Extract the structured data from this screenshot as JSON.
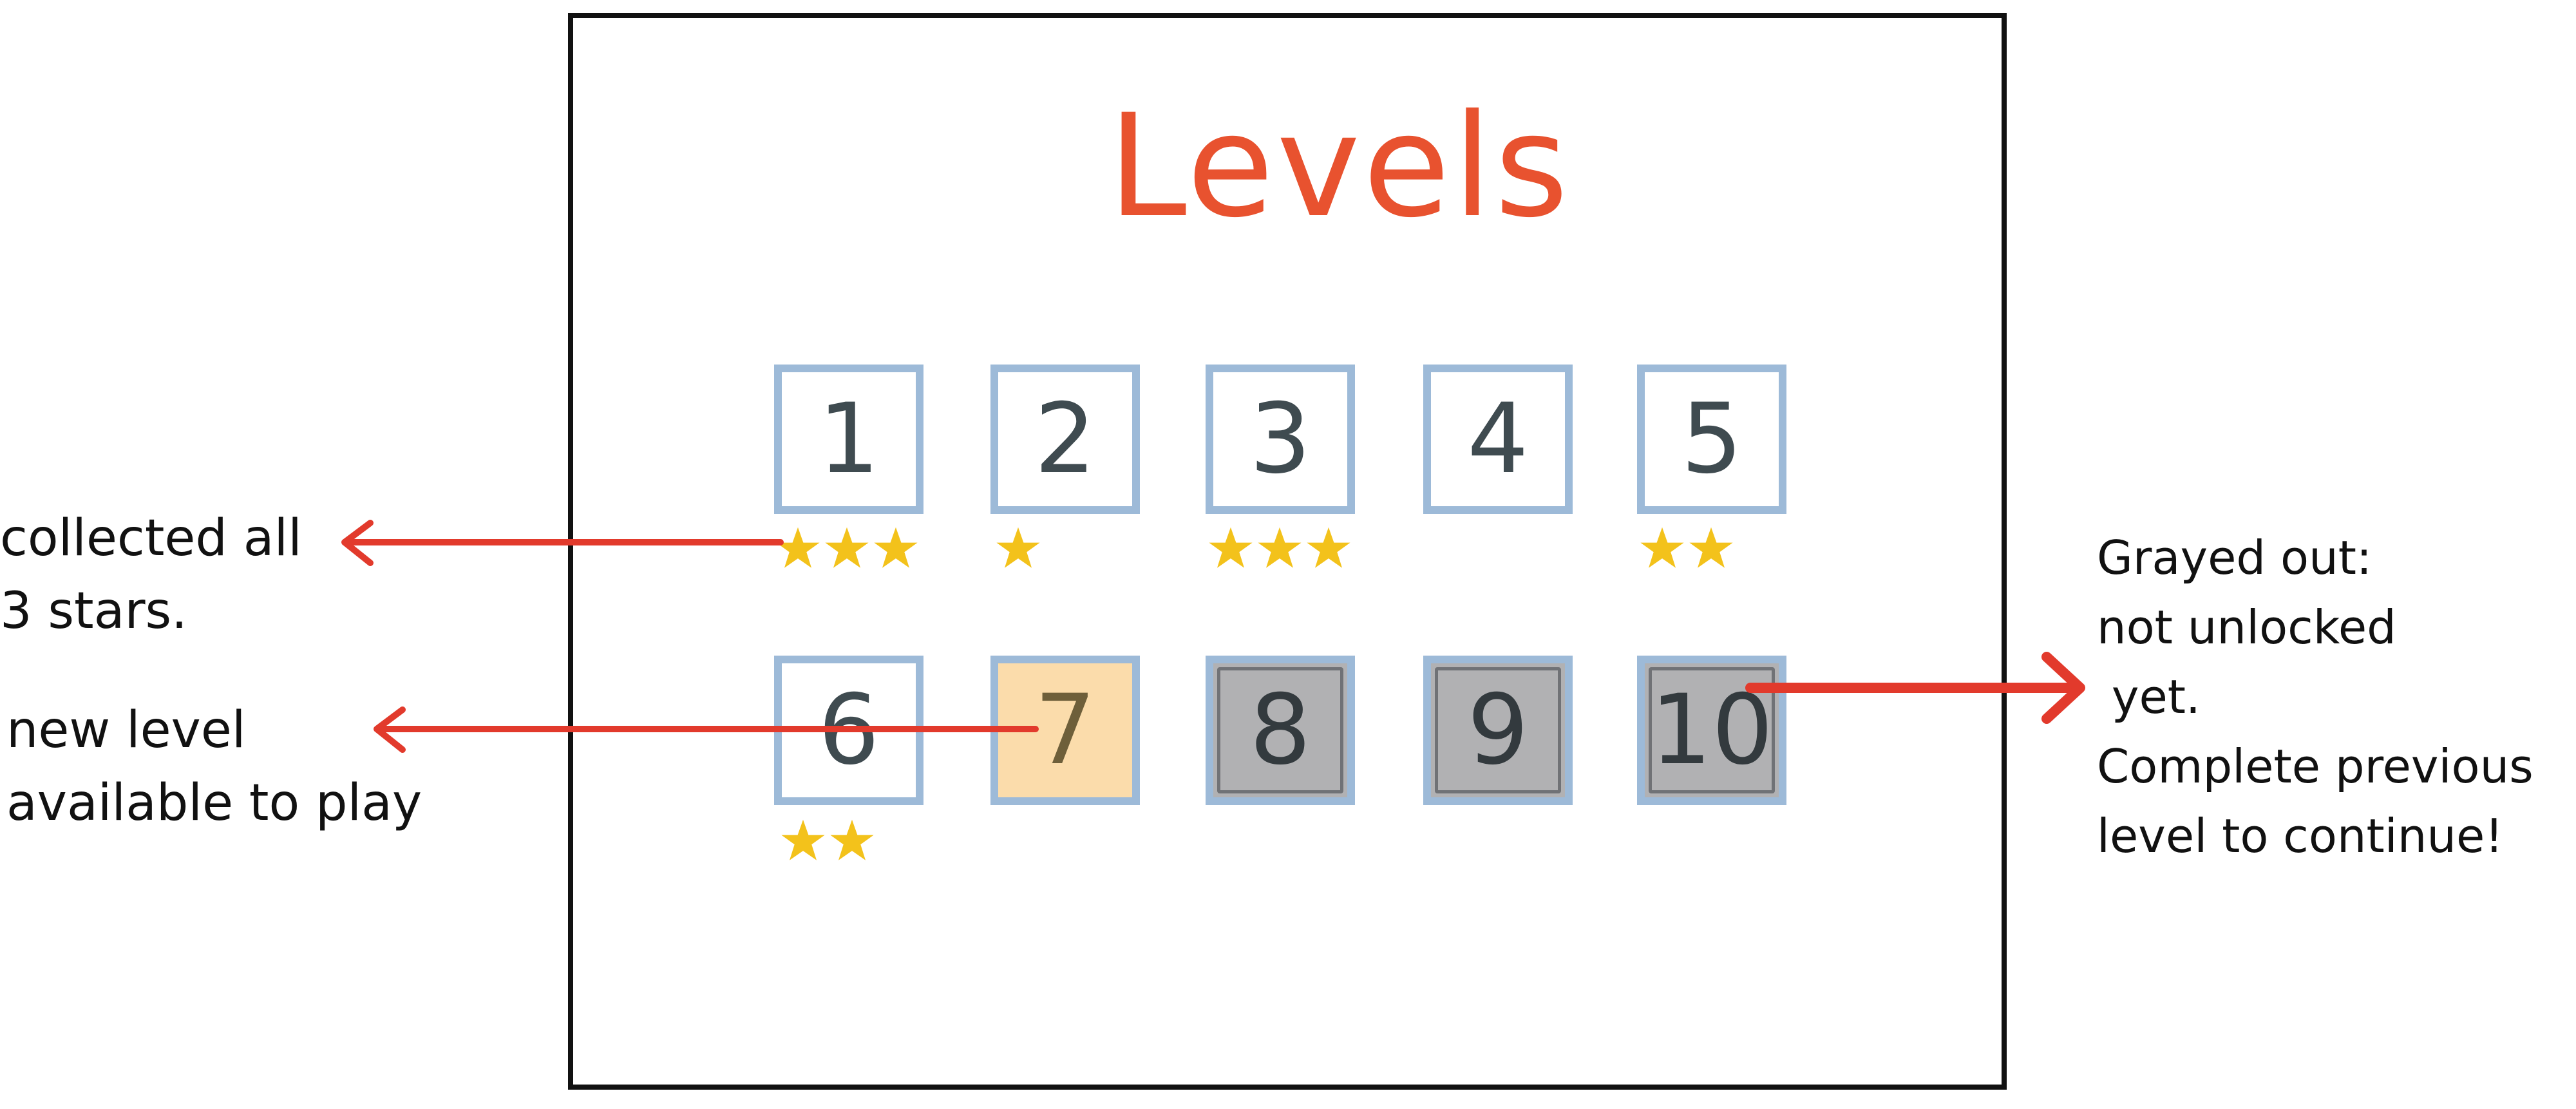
{
  "title": "Levels",
  "colors": {
    "title": "#e8522f",
    "tile_border": "#9dbad8",
    "tile_new_bg": "#fbdcab",
    "tile_locked_bg": "#b1b1b3",
    "star": "#f3c21b",
    "arrow": "#e23a2c"
  },
  "levels": [
    {
      "number": "1",
      "state": "unlocked",
      "stars": 3
    },
    {
      "number": "2",
      "state": "unlocked",
      "stars": 1
    },
    {
      "number": "3",
      "state": "unlocked",
      "stars": 3
    },
    {
      "number": "4",
      "state": "unlocked",
      "stars": 0
    },
    {
      "number": "5",
      "state": "unlocked",
      "stars": 2
    },
    {
      "number": "6",
      "state": "unlocked",
      "stars": 2
    },
    {
      "number": "7",
      "state": "new",
      "stars": 0
    },
    {
      "number": "8",
      "state": "locked",
      "stars": 0
    },
    {
      "number": "9",
      "state": "locked",
      "stars": 0
    },
    {
      "number": "10",
      "state": "locked",
      "stars": 0
    }
  ],
  "annotations": {
    "all_stars": "collected all\n3 stars.",
    "new_level": "new level\navailable to play",
    "grayed_out": "Grayed out:\nnot unlocked\n yet.\nComplete previous\nlevel to continue!"
  }
}
